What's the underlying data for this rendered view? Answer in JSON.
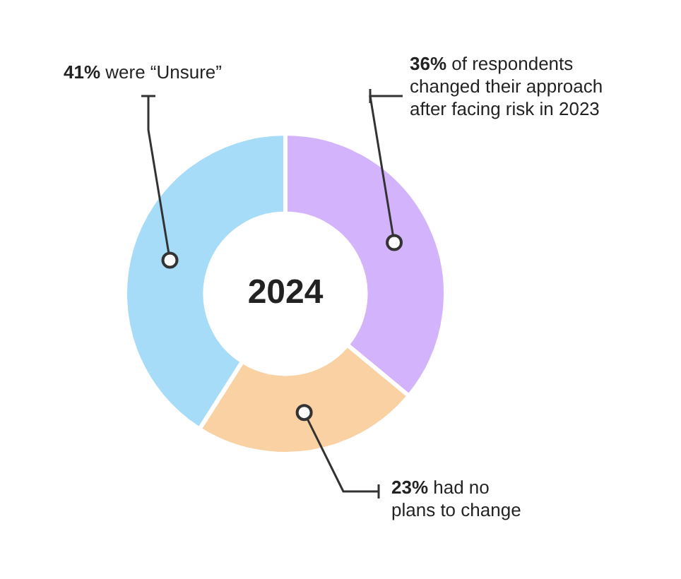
{
  "chart_data": {
    "type": "donut",
    "title": "2024",
    "categories": [
      "of respondents changed their approach after facing risk in 2023",
      "had no plans to change",
      "were “Unsure”"
    ],
    "values": [
      36,
      23,
      41
    ],
    "value_labels": [
      "36%",
      "23%",
      "41%"
    ],
    "colors": [
      "#d4b3fd",
      "#f9d1a2",
      "#a6dcf7"
    ],
    "legend": false
  }
}
